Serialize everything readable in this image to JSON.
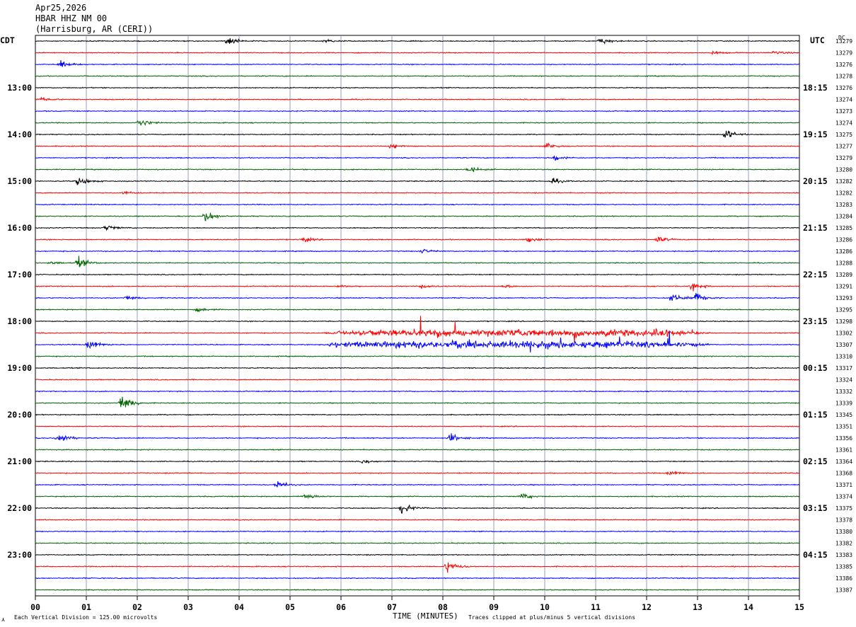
{
  "header": {
    "date": "Apr25,2026",
    "station": "HBAR HHZ NM 00",
    "location": "(Harrisburg, AR (CERI))"
  },
  "left_axis_title": "CDT",
  "right_axis_title": "UTC",
  "dc_header": "DC",
  "footer": {
    "vertical_division": "Each Vertical Division =  125.00 microvolts",
    "x_title": "TIME (MINUTES)",
    "clip_note": "Traces clipped at plus/minus 5 vertical divisions",
    "corner_mark": "⋏"
  },
  "chart_data": {
    "type": "line",
    "title": "",
    "xlabel": "TIME (MINUTES)",
    "ylabel": "",
    "xlim": [
      0,
      15
    ],
    "x_ticks": [
      "00",
      "01",
      "02",
      "03",
      "04",
      "05",
      "06",
      "07",
      "08",
      "09",
      "10",
      "11",
      "12",
      "13",
      "14",
      "15"
    ],
    "minutes_per_line": 15,
    "line_colors": [
      "#000000",
      "#ff0000",
      "#0000ff",
      "#006400"
    ],
    "left_hour_labels": [
      {
        "line": 4,
        "label": "13:00"
      },
      {
        "line": 8,
        "label": "14:00"
      },
      {
        "line": 12,
        "label": "15:00"
      },
      {
        "line": 16,
        "label": "16:00"
      },
      {
        "line": 20,
        "label": "17:00"
      },
      {
        "line": 24,
        "label": "18:00"
      },
      {
        "line": 28,
        "label": "19:00"
      },
      {
        "line": 32,
        "label": "20:00"
      },
      {
        "line": 36,
        "label": "21:00"
      },
      {
        "line": 40,
        "label": "22:00"
      },
      {
        "line": 44,
        "label": "23:00"
      }
    ],
    "right_hour_labels": [
      {
        "line": 4,
        "label": "18:15"
      },
      {
        "line": 8,
        "label": "19:15"
      },
      {
        "line": 12,
        "label": "20:15"
      },
      {
        "line": 16,
        "label": "21:15"
      },
      {
        "line": 20,
        "label": "22:15"
      },
      {
        "line": 24,
        "label": "23:15"
      },
      {
        "line": 28,
        "label": "00:15"
      },
      {
        "line": 32,
        "label": "01:15"
      },
      {
        "line": 36,
        "label": "02:15"
      },
      {
        "line": 40,
        "label": "03:15"
      },
      {
        "line": 44,
        "label": "04:15"
      }
    ],
    "dc_offsets": [
      "13279",
      "13279",
      "13276",
      "13278",
      "13276",
      "13274",
      "13273",
      "13274",
      "13275",
      "13277",
      "13279",
      "13280",
      "13282",
      "13282",
      "13283",
      "13284",
      "13285",
      "13286",
      "13286",
      "13288",
      "13289",
      "13291",
      "13293",
      "13295",
      "13298",
      "13302",
      "13307",
      "13310",
      "13317",
      "13324",
      "13332",
      "13339",
      "13345",
      "13351",
      "13356",
      "13361",
      "13364",
      "13368",
      "13371",
      "13374",
      "13375",
      "13378",
      "13380",
      "13382",
      "13383",
      "13385",
      "13386",
      "13387"
    ],
    "events": [
      {
        "line": 0,
        "minute": 3.78,
        "amp": 9
      },
      {
        "line": 0,
        "minute": 5.7,
        "amp": 3
      },
      {
        "line": 0,
        "minute": 11.1,
        "amp": 7
      },
      {
        "line": 1,
        "minute": 13.3,
        "amp": 3
      },
      {
        "line": 1,
        "minute": 14.5,
        "amp": 4
      },
      {
        "line": 2,
        "minute": 0.5,
        "amp": 7
      },
      {
        "line": 5,
        "minute": 0.1,
        "amp": 4
      },
      {
        "line": 7,
        "minute": 2.05,
        "amp": 9
      },
      {
        "line": 8,
        "minute": 13.55,
        "amp": 11
      },
      {
        "line": 9,
        "minute": 7.0,
        "amp": 5
      },
      {
        "line": 9,
        "minute": 10.05,
        "amp": 7
      },
      {
        "line": 10,
        "minute": 10.2,
        "amp": 6
      },
      {
        "line": 11,
        "minute": 8.5,
        "amp": 7
      },
      {
        "line": 12,
        "minute": 0.85,
        "amp": 9
      },
      {
        "line": 12,
        "minute": 10.15,
        "amp": 6
      },
      {
        "line": 13,
        "minute": 1.75,
        "amp": 3
      },
      {
        "line": 15,
        "minute": 3.35,
        "amp": 12
      },
      {
        "line": 16,
        "minute": 1.4,
        "amp": 6
      },
      {
        "line": 17,
        "minute": 5.25,
        "amp": 5
      },
      {
        "line": 17,
        "minute": 9.7,
        "amp": 5
      },
      {
        "line": 17,
        "minute": 12.2,
        "amp": 7
      },
      {
        "line": 18,
        "minute": 7.6,
        "amp": 5
      },
      {
        "line": 19,
        "minute": 0.3,
        "amp": 3
      },
      {
        "line": 19,
        "minute": 0.85,
        "amp": 11
      },
      {
        "line": 21,
        "minute": 6.0,
        "amp": 3
      },
      {
        "line": 21,
        "minute": 7.6,
        "amp": 5
      },
      {
        "line": 21,
        "minute": 9.2,
        "amp": 3
      },
      {
        "line": 21,
        "minute": 12.9,
        "amp": 8
      },
      {
        "line": 22,
        "minute": 1.8,
        "amp": 5
      },
      {
        "line": 22,
        "minute": 12.5,
        "amp": 10
      },
      {
        "line": 22,
        "minute": 12.95,
        "amp": 13
      },
      {
        "line": 23,
        "minute": 3.2,
        "amp": 4
      },
      {
        "line": 26,
        "minute": 1.05,
        "amp": 12
      },
      {
        "line": 26,
        "minute": 5.8,
        "amp": 4
      },
      {
        "line": 31,
        "minute": 1.7,
        "amp": 20
      },
      {
        "line": 34,
        "minute": 0.45,
        "amp": 12
      },
      {
        "line": 34,
        "minute": 8.15,
        "amp": 9
      },
      {
        "line": 36,
        "minute": 6.45,
        "amp": 4
      },
      {
        "line": 37,
        "minute": 12.45,
        "amp": 5
      },
      {
        "line": 38,
        "minute": 4.75,
        "amp": 8
      },
      {
        "line": 39,
        "minute": 5.3,
        "amp": 7
      },
      {
        "line": 39,
        "minute": 9.55,
        "amp": 7
      },
      {
        "line": 40,
        "minute": 7.2,
        "amp": 12
      },
      {
        "line": 45,
        "minute": 8.1,
        "amp": 13
      }
    ],
    "noisy_band": {
      "lines": [
        25,
        26
      ],
      "from_minute": 6.6,
      "to_minute": 12.2,
      "amp": 28
    }
  }
}
